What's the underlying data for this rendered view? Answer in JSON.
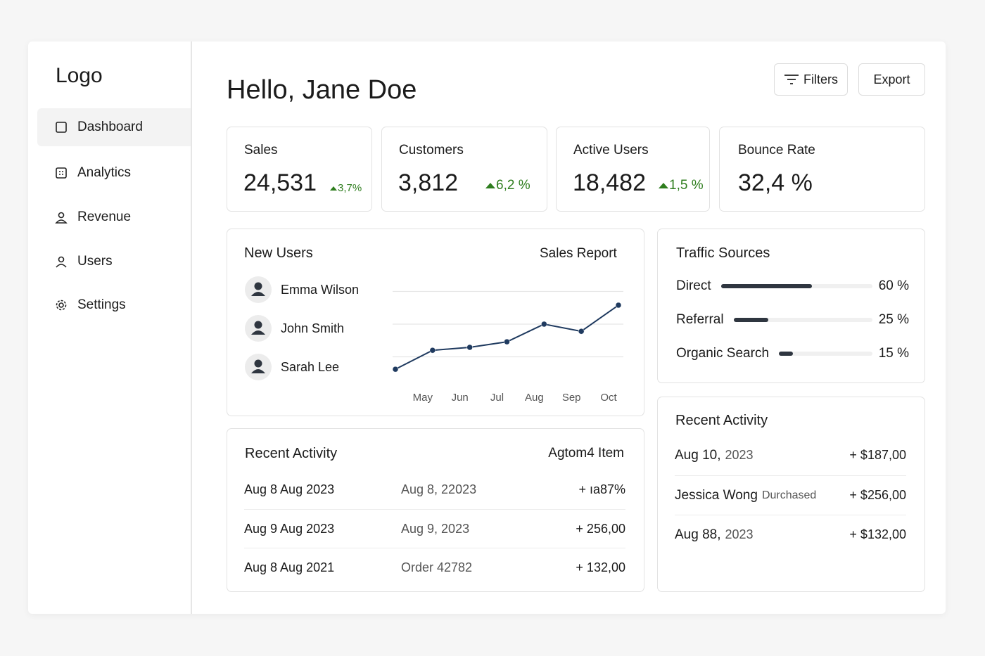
{
  "sidebar": {
    "logo": "Logo",
    "nav": [
      "Dashboard",
      "Analytics",
      "Revenue",
      "Users",
      "Settings"
    ]
  },
  "header": {
    "title": "Hello, Jane Doe",
    "buttons": [
      "Filters",
      "Export"
    ]
  },
  "stats": [
    {
      "label": "Sales",
      "value": "24,531",
      "change": "3,7%"
    },
    {
      "label": "Customers",
      "value": "3,812",
      "change": "6,2 %"
    },
    {
      "label": "Active Users",
      "value": "18,482",
      "change": "1,5 %"
    },
    {
      "label": "Bounce Rate",
      "value": "32,4 %"
    }
  ],
  "new_users": {
    "title": "New Users",
    "users": [
      "Emma Wilson",
      "John Smith",
      "Sarah Lee"
    ]
  },
  "chart_data": {
    "type": "line",
    "title": "Sales Report",
    "categories": [
      null,
      "May",
      "Jun",
      "Jul",
      "Aug",
      "Sep",
      "Oct"
    ],
    "values": [
      0.62,
      1.2,
      1.29,
      1.46,
      2.0,
      1.78,
      2.58
    ],
    "ylim": [
      0,
      4
    ],
    "yticks": [
      1,
      2,
      3
    ],
    "grid": true,
    "color": "#1f3a5f"
  },
  "traffic": {
    "title": "Traffic Sources",
    "names": [
      "Direct",
      "Referral",
      "Organic Search"
    ],
    "values": [
      60,
      25,
      15
    ],
    "value_labels": [
      "60 %",
      "25 %",
      "15 %"
    ],
    "color": "#2f3640"
  },
  "activity_table": {
    "title": "Recent Activity",
    "header_right": "Agtom4 Item",
    "rows": [
      [
        "Aug 8  Aug 2023",
        "Aug 8, 22023",
        "+ ıa87%"
      ],
      [
        "Aug 9  Aug 2023",
        "Aug 9, 2023",
        "+ 256,00"
      ],
      [
        "Aug 8  Aug 2021",
        "Order 42782",
        "+ 132,00"
      ]
    ]
  },
  "activity_list": {
    "title": "Recent Activity",
    "items": [
      {
        "label": "Aug 10,",
        "sub": "2023",
        "amount": "+ $187,00"
      },
      {
        "label": "Jessica Wong",
        "sub": "Durchased",
        "amount": "+ $256,00"
      },
      {
        "label": "Aug 88,",
        "sub": "2023",
        "amount": "+ $132,00"
      }
    ]
  }
}
